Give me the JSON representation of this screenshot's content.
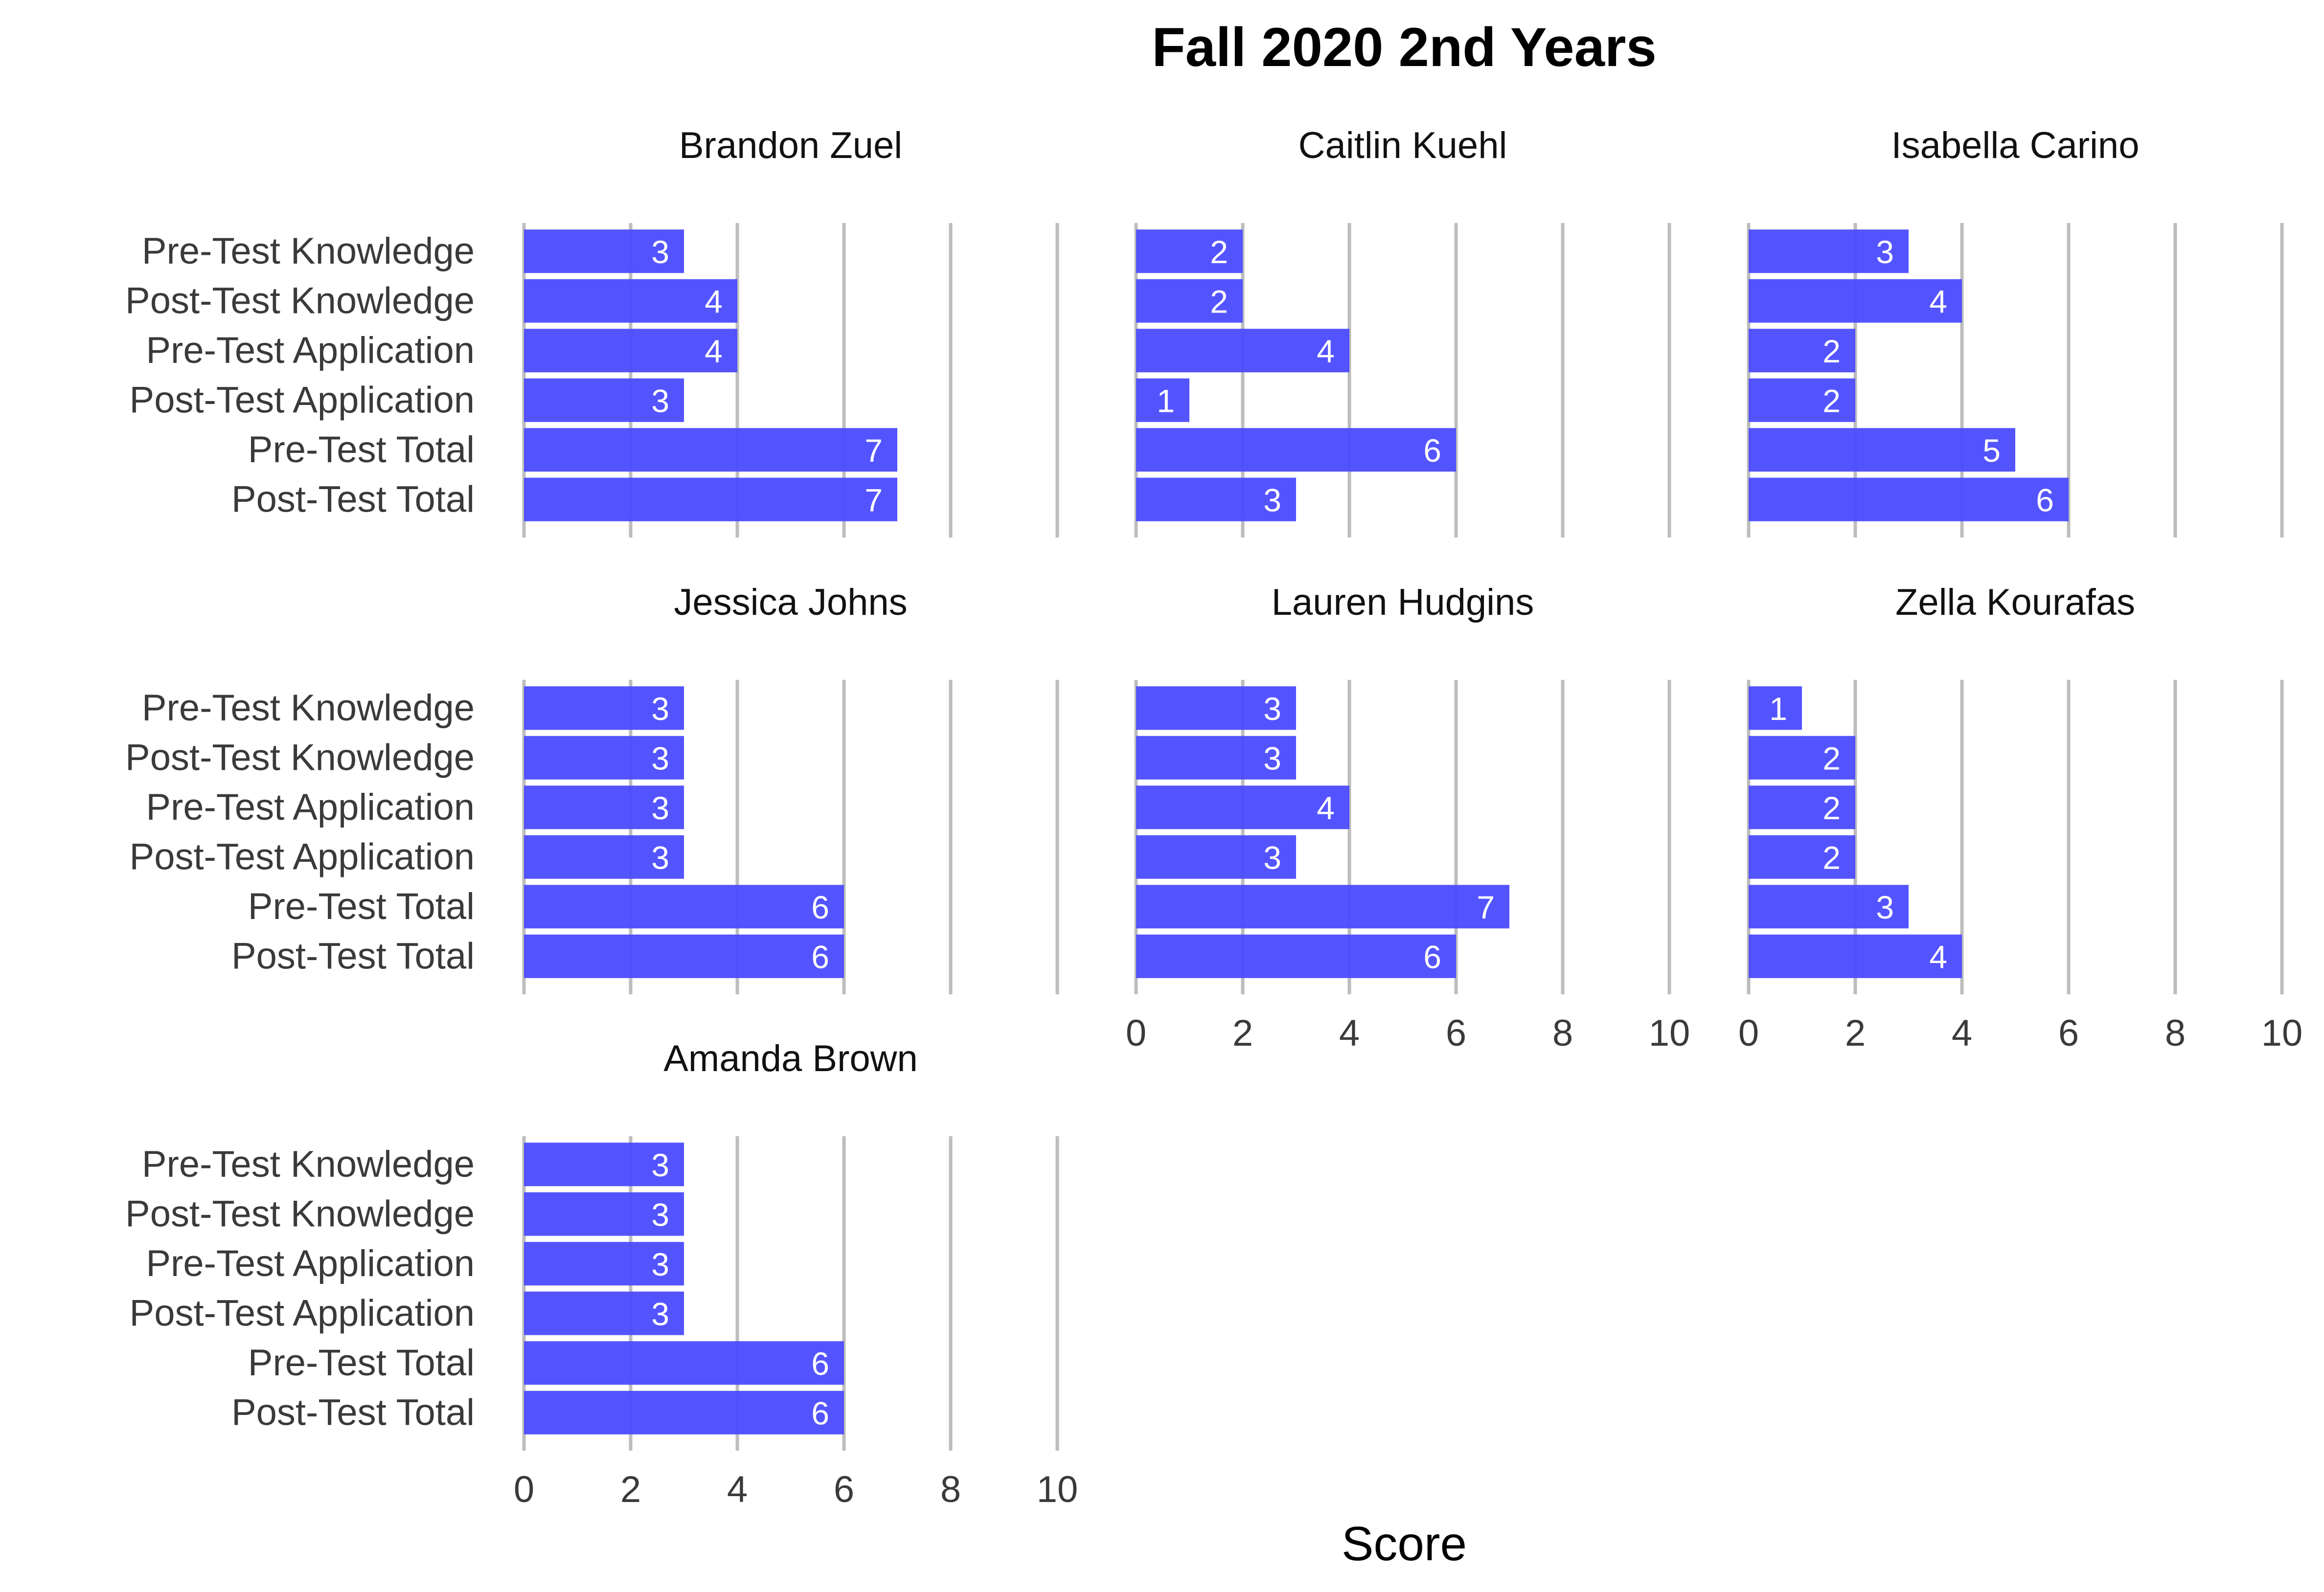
{
  "chart_data": {
    "type": "bar",
    "orientation": "horizontal",
    "title": "Fall 2020 2nd Years",
    "xlabel": "Score",
    "ylabel": "",
    "xlim": [
      0,
      10
    ],
    "x_ticks": [
      0,
      2,
      4,
      6,
      8,
      10
    ],
    "grid": "vertical lines at x ticks",
    "bar_color": "#4b4bff",
    "categories": [
      "Pre-Test Knowledge",
      "Post-Test Knowledge",
      "Pre-Test Application",
      "Post-Test Application",
      "Pre-Test Total",
      "Post-Test Total"
    ],
    "panels": [
      {
        "name": "Brandon Zuel",
        "values": [
          3,
          4,
          4,
          3,
          7,
          7
        ]
      },
      {
        "name": "Caitlin Kuehl",
        "values": [
          2,
          2,
          4,
          1,
          6,
          3
        ]
      },
      {
        "name": "Isabella Carino",
        "values": [
          3,
          4,
          2,
          2,
          5,
          6
        ]
      },
      {
        "name": "Jessica Johns",
        "values": [
          3,
          3,
          3,
          3,
          6,
          6
        ]
      },
      {
        "name": "Lauren Hudgins",
        "values": [
          3,
          3,
          4,
          3,
          7,
          6
        ]
      },
      {
        "name": "Zella Kourafas",
        "values": [
          1,
          2,
          2,
          2,
          3,
          4
        ]
      },
      {
        "name": "Amanda Brown",
        "values": [
          3,
          3,
          3,
          3,
          6,
          6
        ]
      }
    ]
  }
}
